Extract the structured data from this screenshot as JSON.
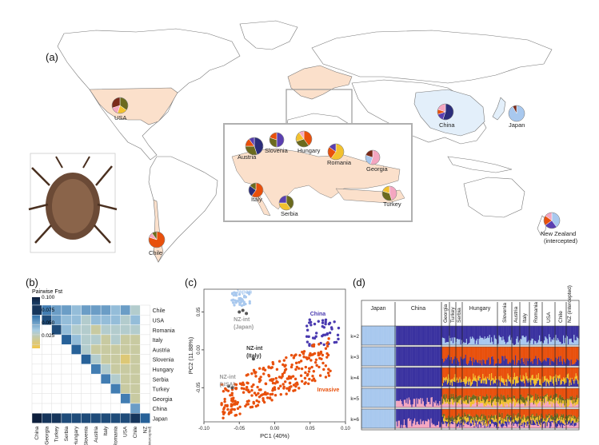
{
  "panels": {
    "a": "(a)",
    "b": "(b)",
    "c": "(c)",
    "d": "(d)"
  },
  "colors": {
    "invasive_land": "#fbe0cb",
    "native_land": "#e3effa",
    "land_stroke": "#777777",
    "navy": "#2b2d7a",
    "purple": "#5a3fb0",
    "orange": "#e8500c",
    "olive": "#6b6a1e",
    "yellow": "#f2c12e",
    "pink": "#f4a6c0",
    "lightblue": "#a8c8ee",
    "brown": "#7a2a1a",
    "gray": "#9a9a9a"
  },
  "map_labels": {
    "usa": "USA",
    "china": "China",
    "japan": "Japan",
    "chile": "Chile",
    "nz_line1": "New Zealand",
    "nz_line2": "(intercepted)",
    "austria": "Austria",
    "slovenia": "Slovenia",
    "hungary": "Hungary",
    "romania": "Romania",
    "georgia": "Georgia",
    "italy": "Italy",
    "serbia": "Serbia",
    "turkey": "Turkey"
  },
  "fst": {
    "legend_title": "Pairwise Fst",
    "legend_ticks": [
      "0.100",
      "0.075",
      "0.050",
      "0.025"
    ],
    "rows": [
      "Chile",
      "USA",
      "Romania",
      "Italy",
      "Austria",
      "Slovenia",
      "Hungary",
      "Serbia",
      "Turkey",
      "Georgia",
      "China",
      "Japan"
    ],
    "cols": [
      "China",
      "Georgia",
      "Turkey",
      "Serbia",
      "Hungary",
      "Slovenia",
      "Austria",
      "Italy",
      "Romania",
      "USA",
      "Chile",
      "NZ"
    ],
    "cols_note": "(intercepted)",
    "values": [
      [
        0.09,
        0.06,
        0.05,
        0.05,
        0.04,
        0.05,
        0.05,
        0.05,
        0.04,
        0.05,
        0.03
      ],
      [
        0.08,
        0.05,
        0.04,
        0.04,
        0.03,
        0.04,
        0.04,
        0.04,
        0.03,
        0.04
      ],
      [
        0.08,
        0.04,
        0.03,
        0.03,
        0.02,
        0.03,
        0.03,
        0.03,
        0.03
      ],
      [
        0.07,
        0.04,
        0.03,
        0.03,
        0.02,
        0.03,
        0.02,
        0.02
      ],
      [
        0.07,
        0.03,
        0.02,
        0.02,
        0.02,
        0.02,
        0.02
      ],
      [
        0.07,
        0.03,
        0.02,
        0.02,
        0.01,
        0.02
      ],
      [
        0.06,
        0.03,
        0.02,
        0.02,
        0.02
      ],
      [
        0.06,
        0.03,
        0.02,
        0.02
      ],
      [
        0.06,
        0.02,
        0.02
      ],
      [
        0.06,
        0.02
      ],
      [
        0.05
      ],
      [
        0.1,
        0.09,
        0.09,
        0.08,
        0.08,
        0.08,
        0.08,
        0.08,
        0.08,
        0.08,
        0.09,
        0.07
      ]
    ]
  },
  "chart_data": {
    "type": "scatter",
    "xlabel": "PC1 (40%)",
    "ylabel": "PC2 (11.88%)",
    "xlim": [
      -0.1,
      0.1
    ],
    "ylim": [
      -0.095,
      0.08
    ],
    "xticks": [
      "-0.10",
      "-0.05",
      "0.00",
      "0.05",
      "0.10"
    ],
    "yticks": [
      "0.05",
      "0.00",
      "-0.05"
    ],
    "annotations": {
      "japan": "Japan",
      "nzint_japan_1": "NZ-int",
      "nzint_japan_2": "(Japan)",
      "china": "China",
      "nzint_italy_1": "NZ-int",
      "nzint_italy_2": "(Italy)",
      "nzint_usa_1": "NZ-int",
      "nzint_usa_2": "(USA)",
      "invasive": "Invasive"
    },
    "series": [
      {
        "name": "Japan",
        "color": "#a8c8ee"
      },
      {
        "name": "China",
        "color": "#4a3ab0"
      },
      {
        "name": "Invasive",
        "color": "#e8500c"
      },
      {
        "name": "NZ-int",
        "color": "#555555"
      }
    ]
  },
  "structure": {
    "groups": [
      "Japan",
      "China",
      "Georgia",
      "Turkey",
      "Serbia",
      "Hungary",
      "Slovenia",
      "Austria",
      "Italy",
      "Romania",
      "USA",
      "Chile",
      "NZ (intercepted)"
    ],
    "k_labels": [
      "k=2",
      "k=3",
      "k=4",
      "k=5",
      "k=6"
    ]
  }
}
